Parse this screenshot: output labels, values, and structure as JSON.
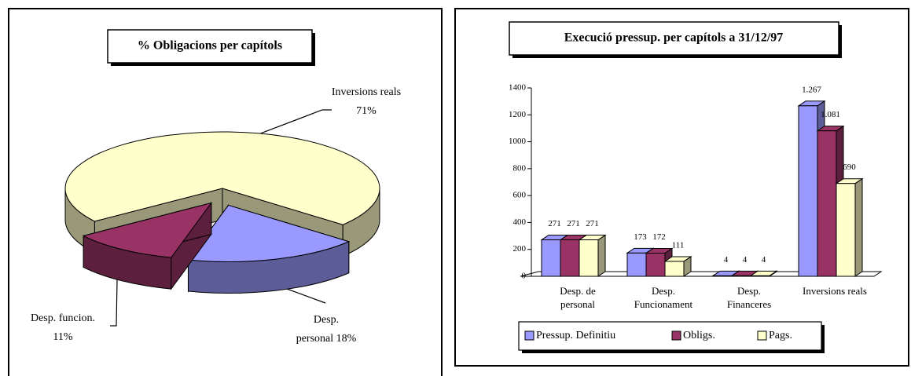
{
  "chart_data": [
    {
      "type": "pie",
      "title": "% Obligacions per capítols",
      "categories": [
        "Desp. personal",
        "Desp. funcion.",
        "Inversions reals"
      ],
      "values": [
        18,
        11,
        71
      ],
      "value_labels": [
        "18%",
        "11%",
        "71%"
      ],
      "colors": [
        "#9999ff",
        "#993366",
        "#ffffcc"
      ],
      "explode": [
        true,
        true,
        false
      ]
    },
    {
      "type": "bar",
      "title": "Execució pressup. per capítols a 31/12/97",
      "categories": [
        "Desp. de personal",
        "Desp. Funcionament",
        "Desp. Financeres",
        "Inversions reals"
      ],
      "series": [
        {
          "name": "Pressup. Definitiu",
          "color": "#9999ff",
          "values": [
            271,
            173,
            4,
            1267
          ],
          "value_labels": [
            "271",
            "173",
            "4",
            "1.267"
          ]
        },
        {
          "name": "Obligs.",
          "color": "#993366",
          "values": [
            271,
            172,
            4,
            1081
          ],
          "value_labels": [
            "271",
            "172",
            "4",
            "1.081"
          ]
        },
        {
          "name": "Pags.",
          "color": "#ffffcc",
          "values": [
            271,
            111,
            4,
            690
          ]
        }
      ],
      "ylim": [
        0,
        1400
      ],
      "yticks": [
        0,
        200,
        400,
        600,
        800,
        1000,
        1200,
        1400
      ],
      "legend": "bottom"
    }
  ]
}
